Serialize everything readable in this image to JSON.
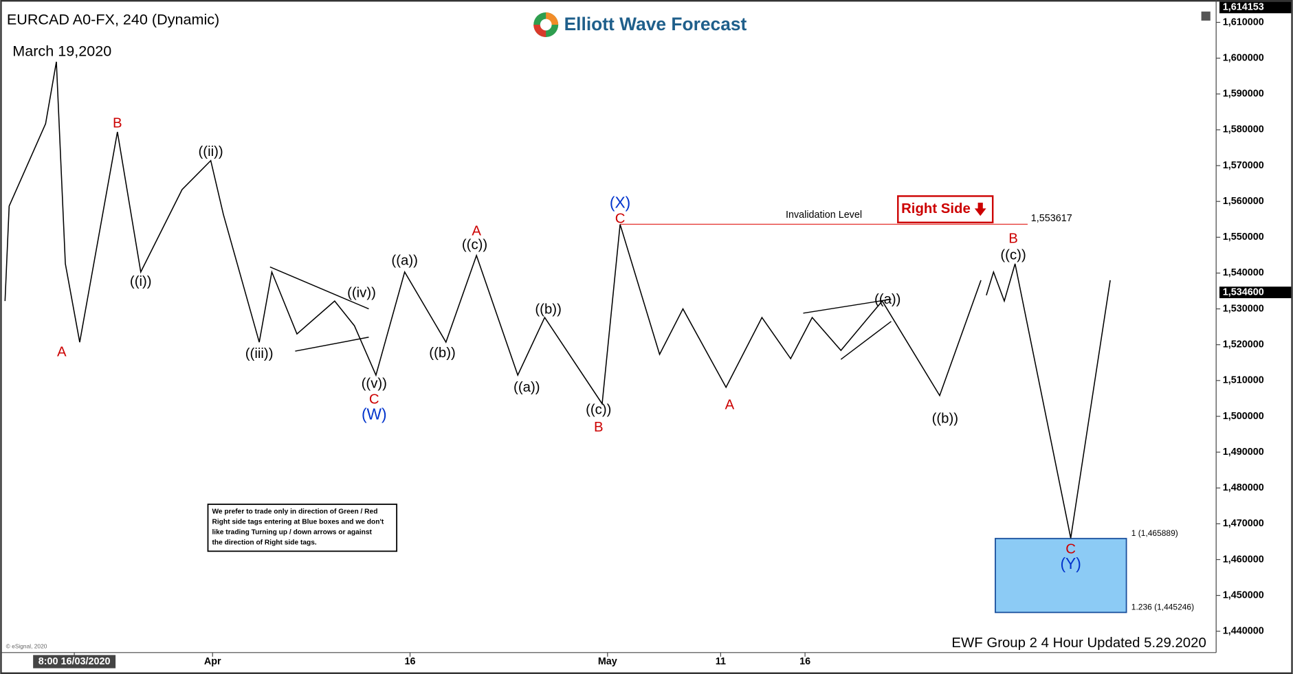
{
  "chart_data": {
    "type": "line",
    "title": "EURCAD A0-FX, 240 (Dynamic)",
    "subtitle": "March 19,2020",
    "brand": "Elliott Wave Forecast",
    "footer": "EWF Group 2 4 Hour Updated 5.29.2020",
    "credit": "© eSignal, 2020",
    "xlim": [
      0.4,
      67.9
    ],
    "ylim": [
      1.4345,
      1.6144
    ],
    "xticks": [
      {
        "value": 4.3,
        "label": "8:00 16/03/2020"
      },
      {
        "value": 12,
        "label": "Apr"
      },
      {
        "value": 23,
        "label": "16"
      },
      {
        "value": 34,
        "label": "May"
      },
      {
        "value": 40.3,
        "label": "11"
      },
      {
        "value": 45,
        "label": "16"
      }
    ],
    "yticks": [
      {
        "value": 1.44,
        "label": "1,440000"
      },
      {
        "value": 1.45,
        "label": "1,450000"
      },
      {
        "value": 1.46,
        "label": "1,460000"
      },
      {
        "value": 1.47,
        "label": "1,470000"
      },
      {
        "value": 1.48,
        "label": "1,480000"
      },
      {
        "value": 1.49,
        "label": "1,490000"
      },
      {
        "value": 1.5,
        "label": "1,500000"
      },
      {
        "value": 1.51,
        "label": "1,510000"
      },
      {
        "value": 1.52,
        "label": "1,520000"
      },
      {
        "value": 1.53,
        "label": "1,530000"
      },
      {
        "value": 1.54,
        "label": "1,540000"
      },
      {
        "value": 1.55,
        "label": "1,550000"
      },
      {
        "value": 1.56,
        "label": "1,560000"
      },
      {
        "value": 1.57,
        "label": "1,570000"
      },
      {
        "value": 1.58,
        "label": "1,580000"
      },
      {
        "value": 1.59,
        "label": "1,590000"
      },
      {
        "value": 1.6,
        "label": "1,600000"
      },
      {
        "value": 1.61,
        "label": "1,610000"
      }
    ],
    "series": [
      {
        "color": "#000000",
        "x": [
          0.44,
          0.67,
          2.7,
          3.3,
          3.8,
          4.6,
          6.7,
          8.0,
          10.3,
          11.9,
          12.6,
          14.6,
          15.3,
          16.7,
          18.8,
          19.9,
          21.1,
          22.7,
          25.0,
          26.7,
          29.0,
          30.5,
          33.7,
          34.7,
          36.9,
          38.2,
          40.6,
          42.6,
          44.2,
          45.4,
          47.0,
          49.3,
          52.5,
          54.8
        ],
        "values": [
          1.5322,
          1.5587,
          1.5817,
          1.599,
          1.5426,
          1.5207,
          1.5794,
          1.5403,
          1.5633,
          1.5714,
          1.5564,
          1.5207,
          1.5403,
          1.523,
          1.5322,
          1.5253,
          1.5115,
          1.5403,
          1.5207,
          1.5449,
          1.5115,
          1.5276,
          1.5035,
          1.5536,
          1.5173,
          1.53,
          1.5081,
          1.5276,
          1.5161,
          1.5276,
          1.5184,
          1.5322,
          1.5058,
          1.538
        ]
      },
      {
        "color": "#000000",
        "x": [
          55.1,
          55.5,
          56.1,
          56.7,
          59.8,
          62.0
        ],
        "values": [
          1.5338,
          1.5403,
          1.5322,
          1.5426,
          1.466,
          1.538
        ]
      }
    ],
    "price_tags": [
      {
        "value": 1.614153,
        "label": "1,614153"
      },
      {
        "value": 1.5346,
        "label": "1,534600"
      }
    ],
    "invalidation": {
      "label": "Invalidation Level",
      "value": 1.553617,
      "value_label": "1,553617",
      "x": [
        34.7,
        57.4
      ],
      "color": "#e53935"
    },
    "target_box": {
      "top": 1.465889,
      "bottom": 1.445246,
      "x": [
        55.6,
        62.9
      ],
      "top_label": "1 (1,465889)",
      "bottom_label": "1.236 (1,445246)",
      "color": "#8ccbf5"
    },
    "right_side": "Right Side",
    "note_lines": [
      "We prefer to trade only in direction of Green / Red",
      "Right side tags entering at Blue boxes and we don't",
      "like trading Turning up / down arrows or against",
      "the direction of Right side tags."
    ],
    "trendlines": [
      [
        15.2,
        1.5417,
        20.7,
        1.53
      ],
      [
        16.6,
        1.5182,
        20.7,
        1.5221
      ],
      [
        44.9,
        1.5288,
        49.8,
        1.5327
      ],
      [
        47.0,
        1.5159,
        49.8,
        1.5265
      ]
    ],
    "annotations": [
      {
        "text": "A",
        "x": 3.6,
        "y": 1.5178,
        "color": "#cc0000"
      },
      {
        "text": "B",
        "x": 6.7,
        "y": 1.5817,
        "color": "#cc0000"
      },
      {
        "text": "((i))",
        "x": 8.0,
        "y": 1.5375,
        "color": "#000000"
      },
      {
        "text": "((ii))",
        "x": 11.9,
        "y": 1.5737,
        "color": "#000000"
      },
      {
        "text": "((iii))",
        "x": 14.6,
        "y": 1.5173,
        "color": "#000000"
      },
      {
        "text": "((iv))",
        "x": 20.3,
        "y": 1.5343,
        "color": "#000000"
      },
      {
        "text": "((v))",
        "x": 21.0,
        "y": 1.509,
        "color": "#000000"
      },
      {
        "text": "C",
        "x": 21.0,
        "y": 1.5046,
        "color": "#cc0000"
      },
      {
        "text": "(W)",
        "x": 21.0,
        "y": 1.5003,
        "color": "#0033cc"
      },
      {
        "text": "((a))",
        "x": 22.7,
        "y": 1.5433,
        "color": "#000000"
      },
      {
        "text": "((b))",
        "x": 24.8,
        "y": 1.5175,
        "color": "#000000"
      },
      {
        "text": "A",
        "x": 26.7,
        "y": 1.5516,
        "color": "#cc0000"
      },
      {
        "text": "((c))",
        "x": 26.6,
        "y": 1.5477,
        "color": "#000000"
      },
      {
        "text": "((a))",
        "x": 29.5,
        "y": 1.5079,
        "color": "#000000"
      },
      {
        "text": "((b))",
        "x": 30.7,
        "y": 1.5297,
        "color": "#000000"
      },
      {
        "text": "((c))",
        "x": 33.5,
        "y": 1.5017,
        "color": "#000000"
      },
      {
        "text": "B",
        "x": 33.5,
        "y": 1.4968,
        "color": "#cc0000"
      },
      {
        "text": "(X)",
        "x": 34.7,
        "y": 1.5594,
        "color": "#0033cc"
      },
      {
        "text": "C",
        "x": 34.7,
        "y": 1.555,
        "color": "#cc0000"
      },
      {
        "text": "A",
        "x": 40.8,
        "y": 1.503,
        "color": "#cc0000"
      },
      {
        "text": "((a))",
        "x": 49.6,
        "y": 1.5325,
        "color": "#000000"
      },
      {
        "text": "((b))",
        "x": 52.8,
        "y": 1.4992,
        "color": "#000000"
      },
      {
        "text": "B",
        "x": 56.6,
        "y": 1.5495,
        "color": "#cc0000"
      },
      {
        "text": "((c))",
        "x": 56.6,
        "y": 1.5449,
        "color": "#000000"
      },
      {
        "text": "C",
        "x": 59.8,
        "y": 1.4628,
        "color": "#cc0000"
      },
      {
        "text": "(Y)",
        "x": 59.8,
        "y": 1.4586,
        "color": "#0033cc"
      }
    ]
  }
}
